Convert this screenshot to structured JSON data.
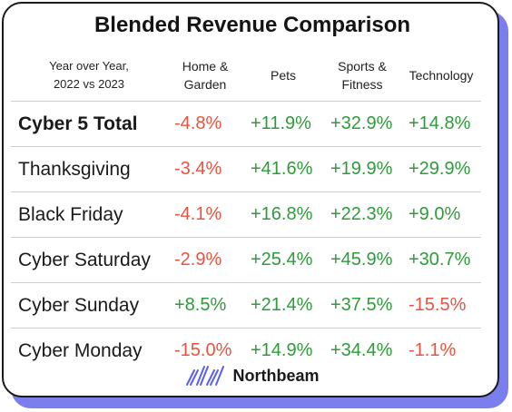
{
  "title": "Blended Revenue Comparison",
  "header": {
    "label_line1": "Year over Year,",
    "label_line2": "2022 vs 2023",
    "columns": [
      {
        "line1": "Home &",
        "line2": "Garden"
      },
      {
        "line1": "Pets",
        "line2": ""
      },
      {
        "line1": "Sports &",
        "line2": "Fitness"
      },
      {
        "line1": "Technology",
        "line2": ""
      }
    ]
  },
  "rows": [
    {
      "label": "Cyber 5 Total",
      "values": [
        "-4.8%",
        "+11.9%",
        "+32.9%",
        "+14.8%"
      ]
    },
    {
      "label": "Thanksgiving",
      "values": [
        "-3.4%",
        "+41.6%",
        "+19.9%",
        "+29.9%"
      ]
    },
    {
      "label": "Black Friday",
      "values": [
        "-4.1%",
        "+16.8%",
        "+22.3%",
        "+9.0%"
      ]
    },
    {
      "label": "Cyber Saturday",
      "values": [
        "-2.9%",
        "+25.4%",
        "+45.9%",
        "+30.7%"
      ]
    },
    {
      "label": "Cyber Sunday",
      "values": [
        "+8.5%",
        "+21.4%",
        "+37.5%",
        "-15.5%"
      ]
    },
    {
      "label": "Cyber Monday",
      "values": [
        "-15.0%",
        "+14.9%",
        "+34.4%",
        "-1.1%"
      ]
    }
  ],
  "brand": {
    "name": "Northbeam",
    "icon": "northbeam-logo-icon"
  },
  "colors": {
    "positive": "#2e9b3a",
    "negative": "#e8533f",
    "accent_shadow": "#7b7fee"
  }
}
